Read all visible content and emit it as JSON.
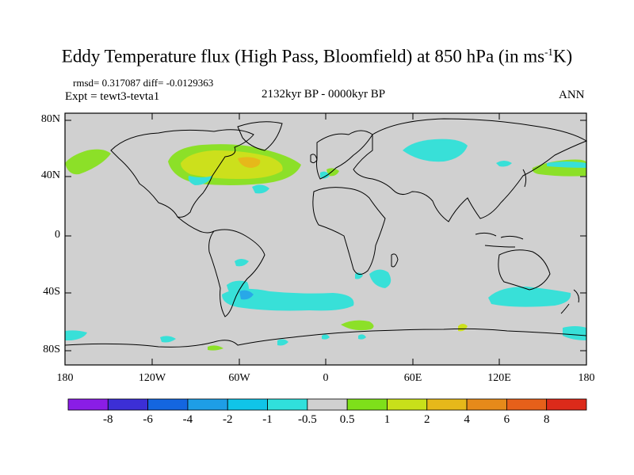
{
  "title": {
    "main": "Eddy Temperature flux (High Pass, Bloomfield) at 850 hPa (in ms",
    "sup": "-1",
    "end": "K)"
  },
  "stats": "rmsd= 0.317087 diff= -0.0129363",
  "expt": "Expt = tewt3-tevta1",
  "period": "2132kyr BP - 0000kyr BP",
  "season": "ANN",
  "lat_labels": [
    "80N",
    "40N",
    "0",
    "40S",
    "80S"
  ],
  "lon_labels": [
    "180",
    "120W",
    "60W",
    "0",
    "60E",
    "120E",
    "180"
  ],
  "colorbar": {
    "labels": [
      "-8",
      "-6",
      "-4",
      "-2",
      "-1",
      "-0.5",
      "0.5",
      "1",
      "2",
      "4",
      "6",
      "8"
    ],
    "colors": [
      "#8a1de6",
      "#3c2fd6",
      "#1466e0",
      "#1e9ee6",
      "#10c4e8",
      "#30e0dc",
      "#d0d0d0",
      "#7ee01a",
      "#c8e01a",
      "#e6b81a",
      "#e68a1a",
      "#e6601a",
      "#dc2a1a"
    ]
  },
  "colors": {
    "land_bg": "#d0d0d0",
    "cyan": "#38e0d8",
    "green": "#8ce028",
    "yellow": "#cce01c",
    "blue": "#28a8e8",
    "orange": "#e6b81a"
  }
}
